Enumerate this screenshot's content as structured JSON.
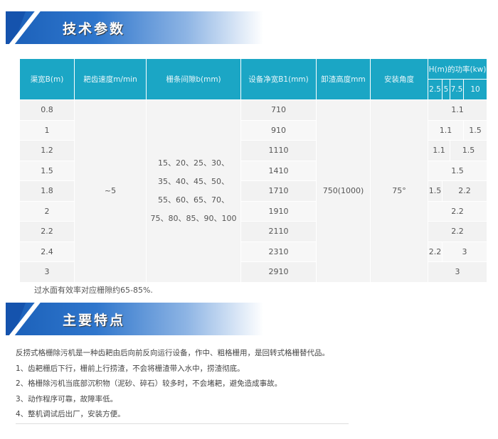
{
  "section1": {
    "title": "技术参数"
  },
  "table": {
    "headers": [
      "渠宽B(m)",
      "耙齿速度m/min",
      "栅条间隙b(mm)",
      "设备净宽B1(mm)",
      "卸渣高度mm",
      "安装角度",
      "H(m)的功率(kw)"
    ],
    "power_heights": [
      "2.5",
      "5",
      "7.5",
      "10"
    ],
    "widths": [
      "0.8",
      "1",
      "1.2",
      "1.5",
      "1.8",
      "2",
      "2.2",
      "2.4",
      "3"
    ],
    "speed": "~5",
    "gap": "15、20、25、30、\n35、40、45、50、\n55、60、65、70、\n75、80、85、90、100",
    "net_widths": [
      "710",
      "910",
      "1110",
      "1410",
      "1710",
      "1910",
      "2110",
      "2310",
      "2910"
    ],
    "discharge_height": "750(1000)",
    "angle": "75°",
    "power": [
      [
        "1.1"
      ],
      [
        "1.1",
        "1.5"
      ],
      [
        "1.1",
        "1.5"
      ],
      [
        "1.5"
      ],
      [
        "1.5",
        "2.2"
      ],
      [
        "2.2"
      ],
      [
        "2.2"
      ],
      [
        "2.2",
        "3"
      ],
      [
        "3"
      ]
    ]
  },
  "note": "过水面有效率对应栅隙约65-85%.",
  "section2": {
    "title": "主要特点"
  },
  "features": [
    "反捞式格栅除污机是一种齿耙由后向前反向运行设备，作中、粗格栅用，是回转式格栅替代品。",
    "1、齿耙栅后下行，栅前上行捞渣，不会将栅渣带入水中，捞渣彻底。",
    "2、格栅除污机当底部沉积物（泥砂、碎石）较多时，不会堵耙，避免造成事故。",
    "3、动作程序可靠，故障率低。",
    "4、整机调试后出厂，安装方便。"
  ]
}
